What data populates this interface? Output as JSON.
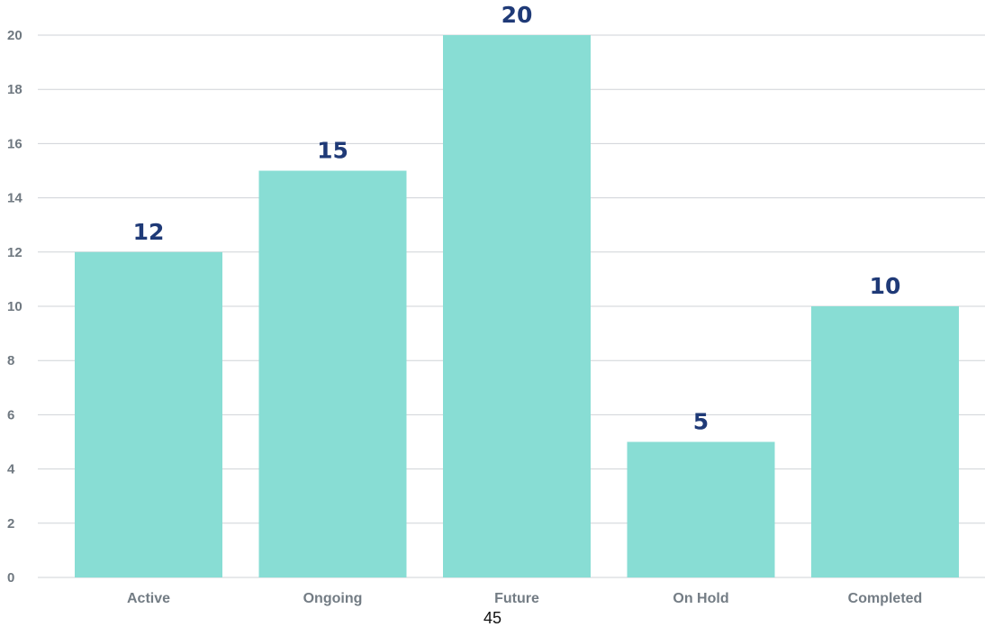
{
  "chart_data": {
    "type": "bar",
    "categories": [
      "Active",
      "Ongoing",
      "Future",
      "On Hold",
      "Completed"
    ],
    "values": [
      12,
      15,
      20,
      5,
      10
    ],
    "title": "",
    "xlabel": "",
    "ylabel": "",
    "ylim": [
      0,
      20
    ],
    "yticks": [
      0,
      2,
      4,
      6,
      8,
      10,
      12,
      14,
      16,
      18,
      20
    ],
    "grid": true,
    "legend": "none",
    "colors": {
      "bar": "#88ddd4",
      "data_label": "#1f3a77",
      "tick_label": "#6f7880",
      "grid": "#cfd3d7"
    }
  },
  "footer": {
    "page_number": "45"
  }
}
